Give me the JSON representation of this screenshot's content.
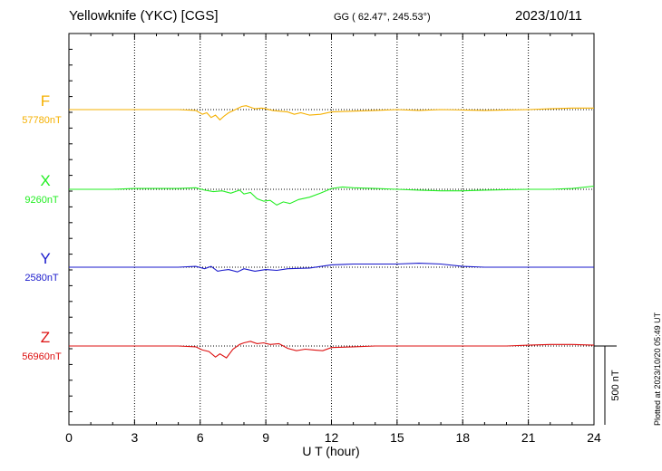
{
  "header": {
    "station": "Yellowknife (YKC)  [CGS]",
    "coords": "GG ( 62.47°, 245.53°)",
    "date": "2023/10/11"
  },
  "footer": {
    "plotted": "Plotted at 2023/10/20 05:49 UT"
  },
  "chart_data": {
    "type": "line",
    "xlabel": "U T (hour)",
    "xlim": [
      0,
      24
    ],
    "x_ticks": [
      "0",
      "3",
      "6",
      "9",
      "12",
      "15",
      "18",
      "21",
      "24"
    ],
    "grid": true,
    "scale_bar_label": "500 nT",
    "scale_bar_nT": 500,
    "series": [
      {
        "name": "F",
        "baseline_label": "57780nT",
        "color": "#f5b000",
        "x": [
          0,
          1,
          2,
          3,
          4,
          5,
          5.8,
          6.1,
          6.3,
          6.5,
          6.7,
          6.9,
          7.1,
          7.3,
          7.6,
          7.9,
          8.1,
          8.3,
          8.5,
          8.8,
          9.0,
          9.3,
          9.6,
          10.0,
          10.3,
          10.6,
          11.0,
          11.5,
          12,
          13,
          14,
          15,
          16,
          17,
          18,
          19,
          20,
          21,
          22,
          23,
          24
        ],
        "values": [
          0,
          0,
          0,
          0,
          0,
          0,
          -10,
          -60,
          -40,
          -100,
          -70,
          -130,
          -80,
          -40,
          0,
          40,
          50,
          30,
          10,
          20,
          10,
          -10,
          -20,
          -30,
          -60,
          -40,
          -70,
          -60,
          -30,
          -20,
          -10,
          0,
          -10,
          0,
          -5,
          -10,
          -5,
          0,
          10,
          20,
          20
        ]
      },
      {
        "name": "X",
        "baseline_label": "9260nT",
        "color": "#22ee22",
        "x": [
          0,
          1,
          2,
          3,
          4,
          5,
          5.8,
          6.2,
          6.6,
          7.0,
          7.4,
          7.8,
          8.0,
          8.3,
          8.6,
          8.9,
          9.2,
          9.5,
          9.8,
          10.1,
          10.5,
          11,
          11.5,
          12,
          12.5,
          13,
          14,
          15,
          16,
          17,
          18,
          19,
          20,
          21,
          22,
          23,
          24
        ],
        "values": [
          0,
          0,
          0,
          10,
          10,
          10,
          20,
          -10,
          -30,
          -20,
          -50,
          -10,
          -60,
          -40,
          -120,
          -150,
          -140,
          -200,
          -160,
          -180,
          -130,
          -100,
          -50,
          10,
          30,
          20,
          10,
          0,
          -10,
          -20,
          -20,
          -10,
          -5,
          0,
          0,
          10,
          40
        ]
      },
      {
        "name": "Y",
        "baseline_label": "2580nT",
        "color": "#1a1acc",
        "x": [
          0,
          1,
          2,
          3,
          4,
          5,
          5.8,
          6.2,
          6.5,
          6.8,
          7.0,
          7.3,
          7.7,
          8.0,
          8.5,
          9.0,
          9.5,
          10,
          11,
          12,
          13,
          14,
          15,
          16,
          17,
          18,
          19,
          20,
          21,
          22,
          23,
          24
        ],
        "values": [
          0,
          0,
          0,
          0,
          0,
          0,
          10,
          -20,
          10,
          -50,
          -40,
          -30,
          -60,
          -20,
          -50,
          -30,
          -40,
          -20,
          -10,
          30,
          40,
          40,
          40,
          50,
          40,
          10,
          0,
          0,
          0,
          0,
          0,
          0
        ]
      },
      {
        "name": "Z",
        "baseline_label": "56960nT",
        "color": "#dd1111",
        "x": [
          0,
          1,
          2,
          3,
          4,
          5,
          5.8,
          6.1,
          6.4,
          6.7,
          6.9,
          7.2,
          7.5,
          7.8,
          8.0,
          8.3,
          8.6,
          8.9,
          9.2,
          9.6,
          10.0,
          10.4,
          10.8,
          11.2,
          11.6,
          12,
          13,
          14,
          15,
          16,
          17,
          18,
          19,
          20,
          21,
          22,
          23,
          24
        ],
        "values": [
          0,
          0,
          0,
          0,
          0,
          0,
          -10,
          -50,
          -70,
          -140,
          -100,
          -150,
          -40,
          20,
          40,
          60,
          30,
          40,
          20,
          30,
          -30,
          -60,
          -40,
          -50,
          -60,
          -20,
          -10,
          0,
          0,
          0,
          0,
          0,
          0,
          0,
          10,
          20,
          20,
          10
        ]
      }
    ]
  }
}
